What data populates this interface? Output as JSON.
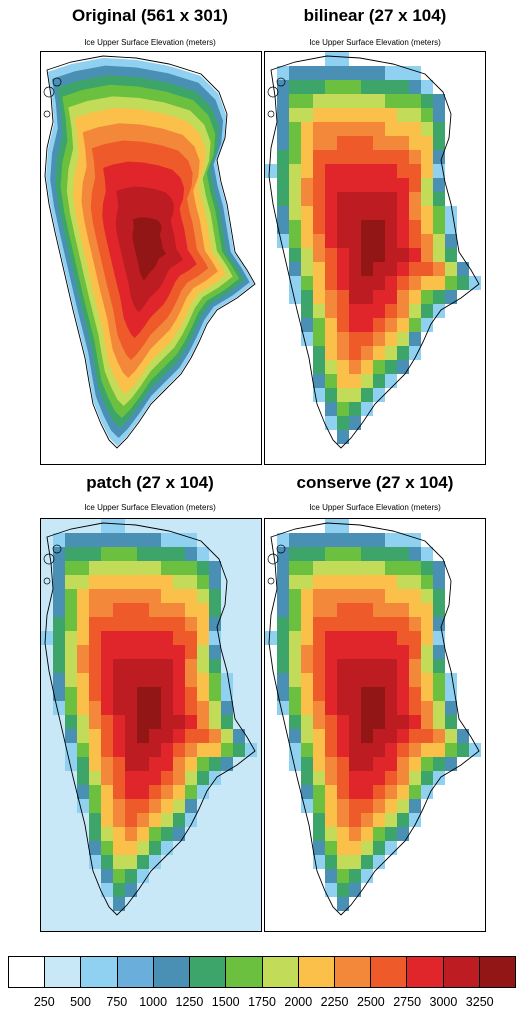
{
  "panels": [
    {
      "id": "original",
      "title": "Original (561 x 301)",
      "subtitle": "Ice Upper Surface Elevation (meters)",
      "style": "smooth",
      "ocean_fill": false
    },
    {
      "id": "bilinear",
      "title": "bilinear (27 x 104)",
      "subtitle": "Ice Upper Surface Elevation (meters)",
      "style": "blocky",
      "ocean_fill": false
    },
    {
      "id": "patch",
      "title": "patch (27 x 104)",
      "subtitle": "Ice Upper Surface Elevation (meters)",
      "style": "blocky",
      "ocean_fill": true
    },
    {
      "id": "conserve",
      "title": "conserve (27 x 104)",
      "subtitle": "Ice Upper Surface Elevation (meters)",
      "style": "blocky",
      "ocean_fill": false
    }
  ],
  "colorbar": {
    "colors": [
      "#ffffff",
      "#c8e8f8",
      "#90d0f0",
      "#6aaedb",
      "#4a90b5",
      "#3ea56a",
      "#6cc040",
      "#c2dc5a",
      "#fbc04a",
      "#f4883a",
      "#ee5a2a",
      "#e0262a",
      "#bd1c22",
      "#931616"
    ],
    "labels": [
      "250",
      "500",
      "750",
      "1000",
      "1250",
      "1500",
      "1750",
      "2000",
      "2250",
      "2500",
      "2750",
      "3000",
      "3250"
    ]
  }
}
